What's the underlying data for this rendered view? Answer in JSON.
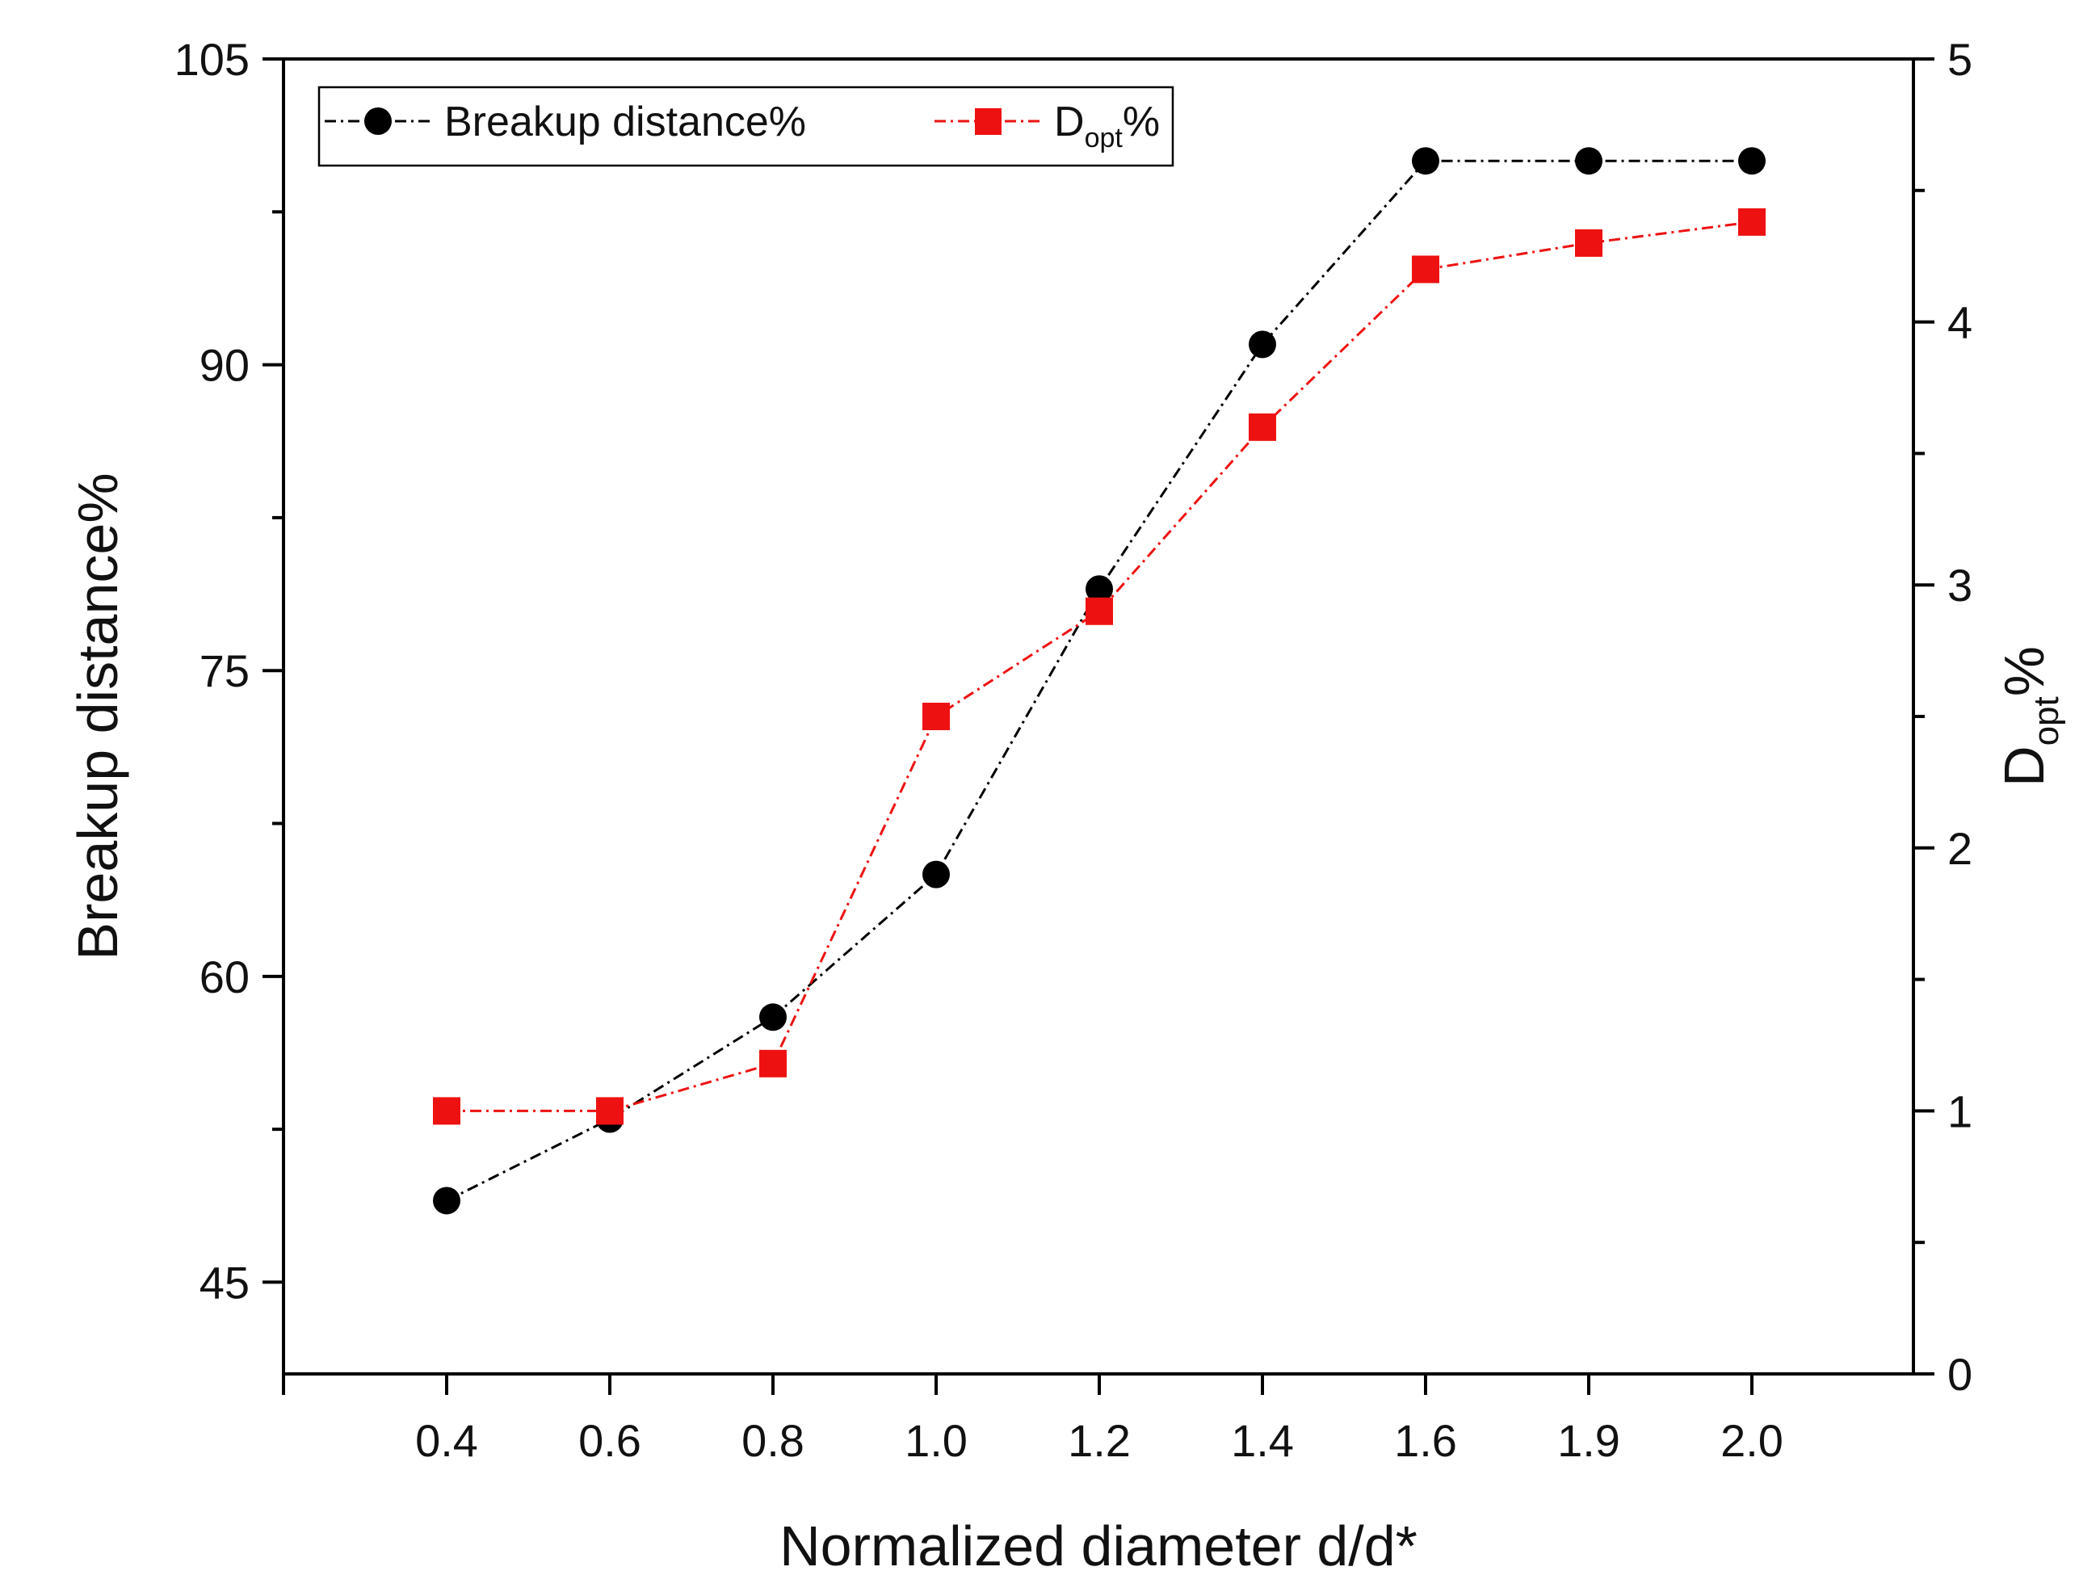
{
  "chart_data": {
    "type": "line",
    "title": "",
    "xlabel": "Normalized diameter d/d*",
    "ylabel": "Breakup distance%",
    "y2label": {
      "main": "D",
      "sub": "opt",
      "suffix": "%"
    },
    "categories": [
      "0.4",
      "0.6",
      "0.8",
      "1.0",
      "1.2",
      "1.4",
      "1.6",
      "1.9",
      "2.0"
    ],
    "ylim": [
      40.5,
      105
    ],
    "y_ticks": [
      45,
      60,
      75,
      90,
      105
    ],
    "y2lim": [
      0,
      5
    ],
    "y2_ticks": [
      0,
      1,
      2,
      3,
      4,
      5
    ],
    "grid": false,
    "legend_position": "top-left",
    "series": [
      {
        "name": "Breakup distance%",
        "axis": "left",
        "marker": "circle",
        "color": "#000000",
        "values": [
          49,
          53,
          58,
          65,
          79,
          91,
          100,
          100,
          100
        ]
      },
      {
        "name": "D_opt%",
        "legend": {
          "main": "D",
          "sub": "opt",
          "suffix": "%"
        },
        "axis": "right",
        "marker": "square",
        "color": "#ee1111",
        "values": [
          1.0,
          1.0,
          1.18,
          2.5,
          2.9,
          3.6,
          4.2,
          4.3,
          4.38
        ]
      }
    ]
  }
}
